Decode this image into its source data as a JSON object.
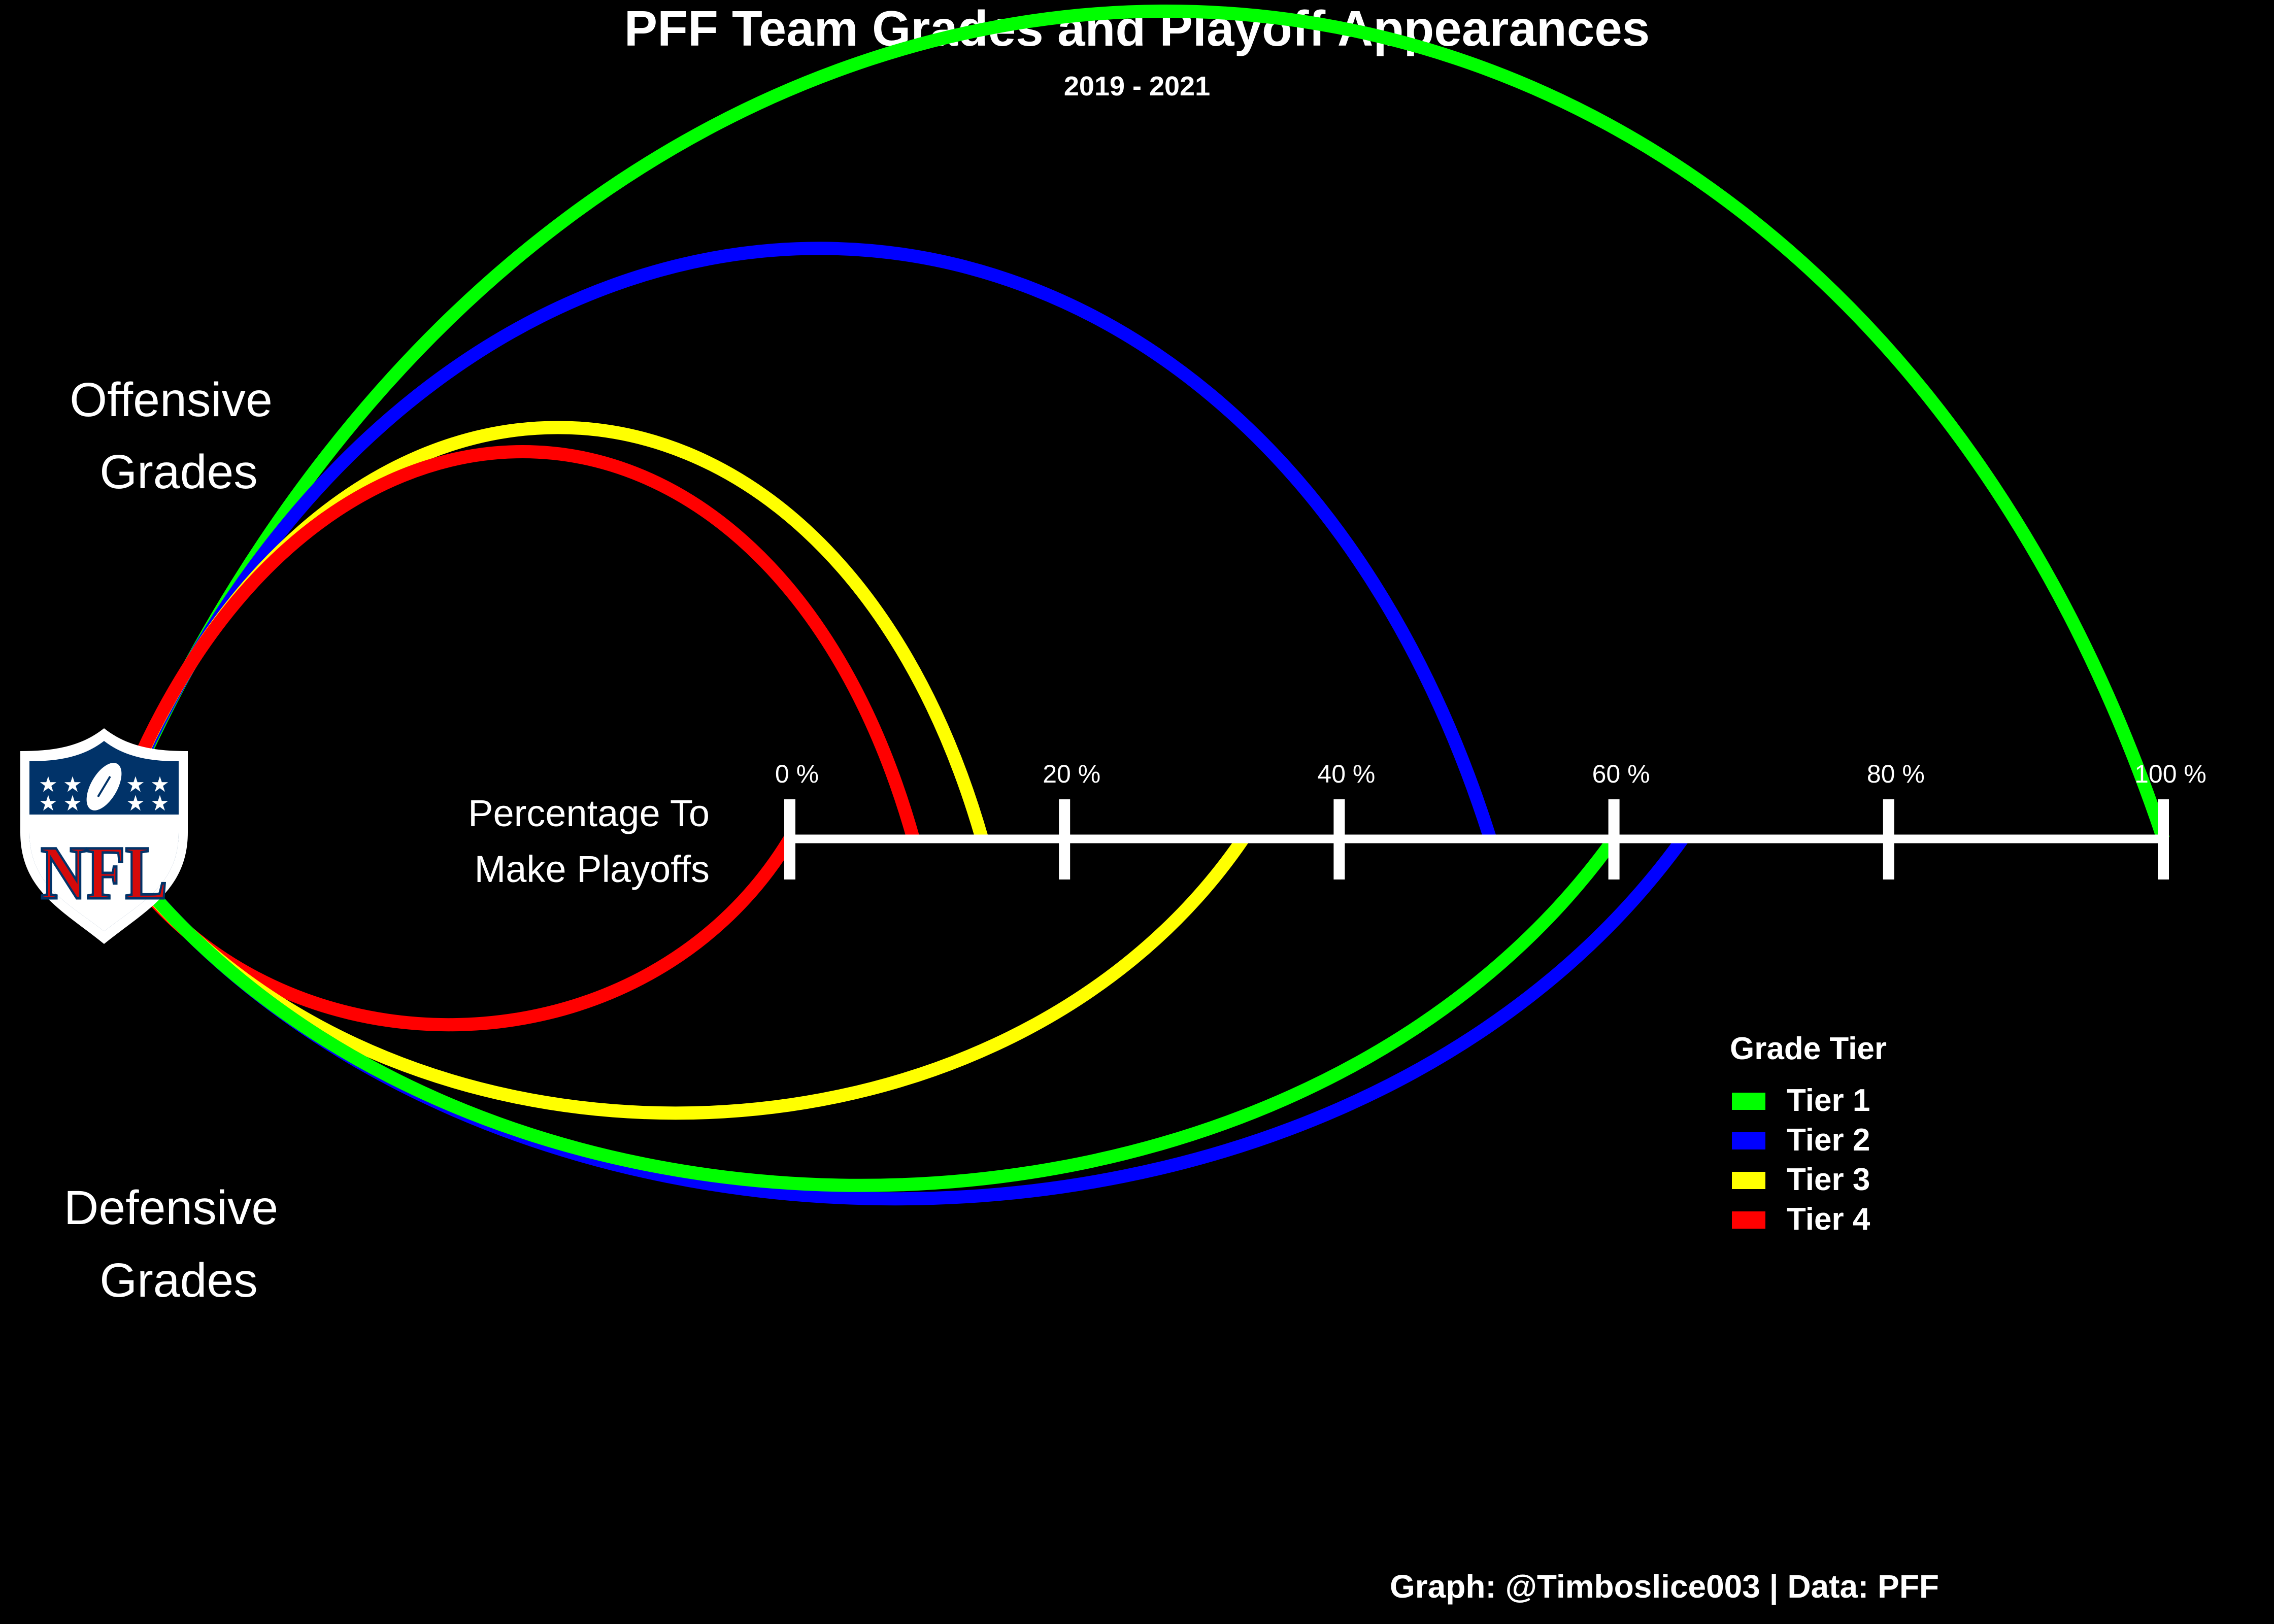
{
  "chart_data": {
    "type": "line",
    "title": "PFF Team Grades and Playoff Appearances",
    "subtitle": "2019 - 2021",
    "upper_label": [
      "Offensive",
      "Grades"
    ],
    "lower_label": [
      "Defensive",
      "Grades"
    ],
    "axis_label": [
      "Percentage To",
      "Make Playoffs"
    ],
    "axis_ticks": [
      0,
      20,
      40,
      60,
      80,
      100
    ],
    "tick_labels": [
      "0 %",
      "20 %",
      "40 %",
      "60 %",
      "80 %",
      "100 %"
    ],
    "xlim": [
      0,
      100
    ],
    "legend": {
      "title": "Grade Tier",
      "position": "right"
    },
    "series": [
      {
        "name": "Tier 1",
        "color": "#00FF00",
        "offensive": 100,
        "defensive": 60
      },
      {
        "name": "Tier 2",
        "color": "#0000FF",
        "offensive": 51,
        "defensive": 65
      },
      {
        "name": "Tier 3",
        "color": "#FFFF00",
        "offensive": 14,
        "defensive": 33
      },
      {
        "name": "Tier 4",
        "color": "#FF0000",
        "offensive": 9,
        "defensive": 0
      }
    ],
    "caption": "Graph: @Timboslice003 | Data: PFF",
    "logo": {
      "icon": "nfl-shield-logo",
      "text": "NFL"
    }
  }
}
